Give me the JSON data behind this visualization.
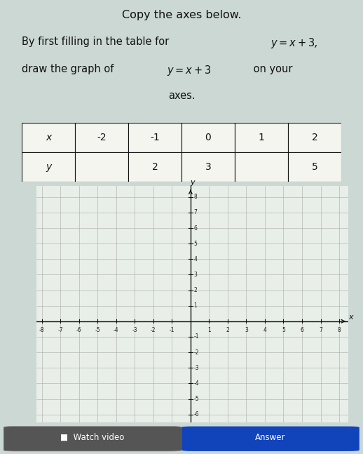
{
  "title": "Copy the axes below.",
  "instruction_line1": "By first filling in the table for y = x + 3,",
  "instruction_line2": "draw the graph of y = x + 3 on your",
  "instruction_line3": "axes.",
  "table_row1": [
    "x",
    "-2",
    "-1",
    "0",
    "1",
    "2"
  ],
  "table_row2": [
    "y",
    "",
    "2",
    "3",
    "",
    "5"
  ],
  "x_min": -8,
  "x_max": 8,
  "y_min": -6,
  "y_max": 8,
  "grid_color": "#aaaaaa",
  "axis_color": "#111111",
  "graph_bg": "#e8eee8",
  "page_bg": "#ccd8d4",
  "tick_label_color": "#222222",
  "text_color": "#111111",
  "answer_btn_color": "#1144bb",
  "watch_btn_color": "#555555"
}
